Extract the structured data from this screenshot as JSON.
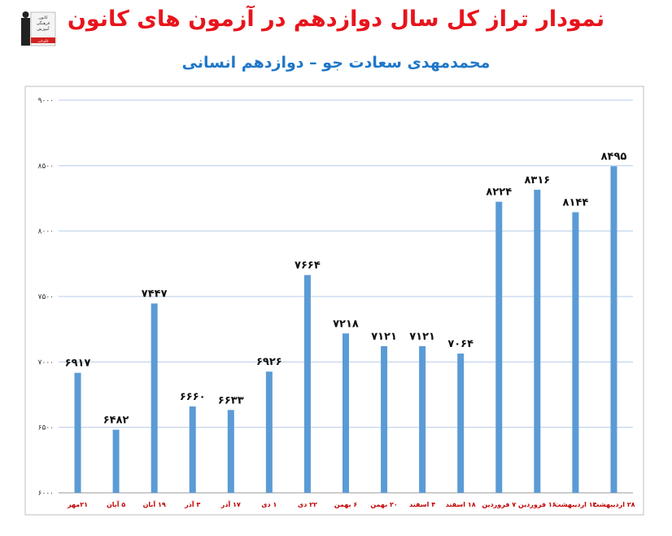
{
  "title": "نمودار تراز کل سال دوازدهم در آزمون های کانون",
  "subtitle": "محمدمهدی سعادت جو – دوازدهم انسانی",
  "logo": {
    "icon": "graduate-book-icon",
    "text": [
      "کانون",
      "فرهنگی",
      "آموزش",
      "قلم‌چی"
    ]
  },
  "colors": {
    "bar": "#5b9bd5",
    "title": "#e8141c",
    "subtitle": "#1f77c8",
    "category": "#c00000",
    "grid": "#b7cde8"
  },
  "chart_data": {
    "type": "bar",
    "title": "نمودار تراز کل سال دوازدهم در آزمون های کانون",
    "subtitle": "محمدمهدی سعادت جو – دوازدهم انسانی",
    "categories": [
      "۲۱مهر",
      "۵ آبان",
      "۱۹ آبان",
      "۳ آذر",
      "۱۷ آذر",
      "۱ دی",
      "۲۲ دی",
      "۶ بهمن",
      "۲۰ بهمن",
      "۴ اسفند",
      "۱۸ اسفند",
      "۷ فروردین",
      "۱۶ فروردین",
      "۱۴ اردیبهشت",
      "۲۸ اردیبهشت"
    ],
    "values": [
      6917,
      6482,
      7447,
      6660,
      6633,
      6926,
      7664,
      7218,
      7121,
      7121,
      7064,
      8224,
      8316,
      8144,
      8495
    ],
    "value_labels": [
      "۶۹۱۷",
      "۶۴۸۲",
      "۷۴۴۷",
      "۶۶۶۰",
      "۶۶۳۳",
      "۶۹۲۶",
      "۷۶۶۴",
      "۷۲۱۸",
      "۷۱۲۱",
      "۷۱۲۱",
      "۷۰۶۴",
      "۸۲۲۴",
      "۸۳۱۶",
      "۸۱۴۴",
      "۸۴۹۵"
    ],
    "ylim": [
      6000,
      9000
    ],
    "yticks": [
      6000,
      6500,
      7000,
      7500,
      8000,
      8500,
      9000
    ],
    "ytick_labels": [
      "۶۰۰۰",
      "۶۵۰۰",
      "۷۰۰۰",
      "۷۵۰۰",
      "۸۰۰۰",
      "۸۵۰۰",
      "۹۰۰۰"
    ],
    "grid": true,
    "legend": "none"
  }
}
